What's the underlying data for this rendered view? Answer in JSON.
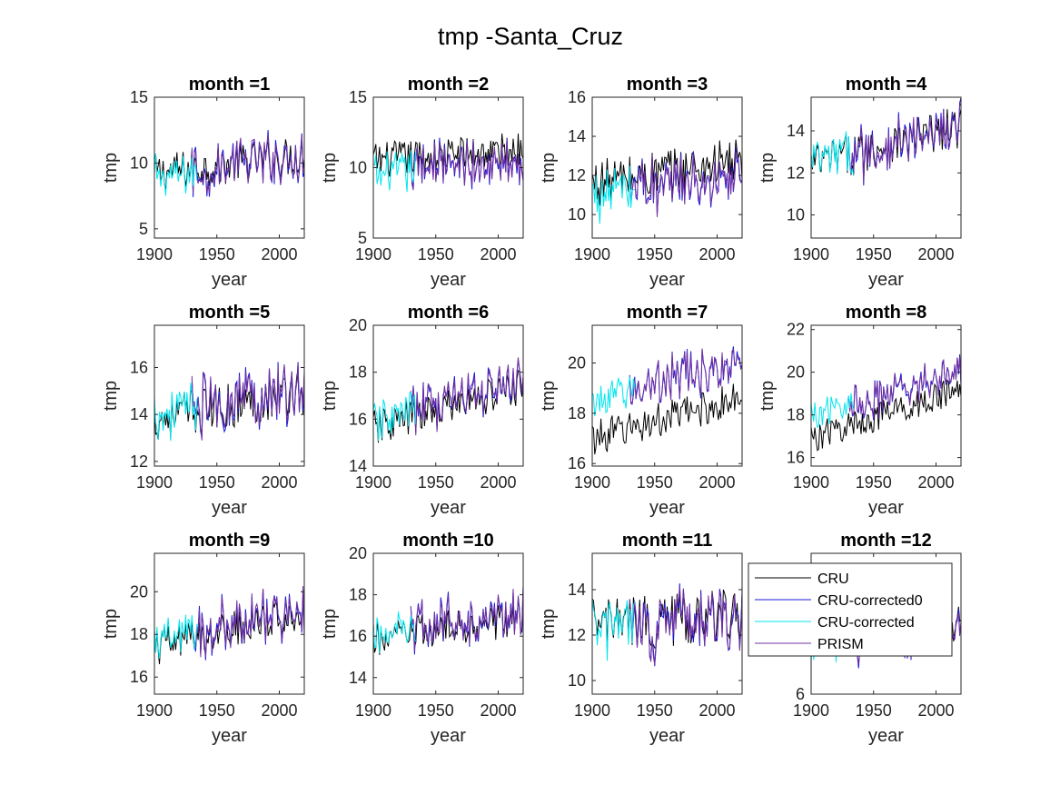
{
  "figure": {
    "title": "tmp -Santa_Cruz"
  },
  "chart_data": {
    "type": "line",
    "layout_rows": 3,
    "layout_cols": 4,
    "xlabel": "year",
    "ylabel": "tmp",
    "xlim": [
      1900,
      2020
    ],
    "xticks": [
      1900,
      1950,
      2000
    ],
    "legend": {
      "placement": "overlapping panel month =12 (upper-left)",
      "entries": [
        {
          "name": "CRU",
          "color": "#000000"
        },
        {
          "name": "CRU-corrected0",
          "color": "#1a1adb"
        },
        {
          "name": "CRU-corrected",
          "color": "#00e5ee"
        },
        {
          "name": "PRISM",
          "color": "#7030a0"
        }
      ]
    },
    "series_colors": {
      "CRU": "#000000",
      "CRU-corrected0": "#1a1adb",
      "CRU-corrected": "#00e5ee",
      "PRISM": "#7030a0"
    },
    "series_ranges": {
      "CRU-corrected": [
        1900,
        1934
      ],
      "PRISM": [
        1930,
        2020
      ],
      "CRU-corrected0": [
        1930,
        2020
      ],
      "CRU": [
        1900,
        2020
      ]
    },
    "panels": [
      {
        "title": "month =1",
        "ylim": [
          4.3,
          15
        ],
        "yticks": [
          5,
          10,
          15
        ],
        "cru_trend": [
          9.2,
          10.6
        ],
        "corr_offset": -0.3,
        "prism_offset": -0.2,
        "noise": 1.5
      },
      {
        "title": "month =2",
        "ylim": [
          5,
          15
        ],
        "yticks": [
          5,
          10,
          15
        ],
        "cru_trend": [
          10.5,
          11.3
        ],
        "corr_offset": -1.0,
        "prism_offset": -0.8,
        "noise": 1.3
      },
      {
        "title": "month =3",
        "ylim": [
          8.8,
          16
        ],
        "yticks": [
          10,
          12,
          14,
          16
        ],
        "cru_trend": [
          11.6,
          12.8
        ],
        "corr_offset": -0.6,
        "prism_offset": -0.7,
        "noise": 1.2
      },
      {
        "title": "month =4",
        "ylim": [
          8.9,
          15.6
        ],
        "yticks": [
          10,
          12,
          14
        ],
        "cru_trend": [
          12.4,
          14.2
        ],
        "corr_offset": 0.1,
        "prism_offset": 0.0,
        "noise": 1.0
      },
      {
        "title": "month =5",
        "ylim": [
          11.8,
          17.8
        ],
        "yticks": [
          12,
          14,
          16
        ],
        "cru_trend": [
          13.8,
          15.0
        ],
        "corr_offset": 0.2,
        "prism_offset": 0.2,
        "noise": 1.0
      },
      {
        "title": "month =6",
        "ylim": [
          14,
          20
        ],
        "yticks": [
          14,
          16,
          18,
          20
        ],
        "cru_trend": [
          15.6,
          17.4
        ],
        "corr_offset": 0.3,
        "prism_offset": 0.3,
        "noise": 0.8
      },
      {
        "title": "month =7",
        "ylim": [
          15.9,
          21.5
        ],
        "yticks": [
          16,
          18,
          20
        ],
        "cru_trend": [
          17.0,
          18.6
        ],
        "corr_offset": 1.5,
        "prism_offset": 1.5,
        "noise": 0.7
      },
      {
        "title": "month =8",
        "ylim": [
          15.6,
          22.2
        ],
        "yticks": [
          16,
          18,
          20,
          22
        ],
        "cru_trend": [
          16.9,
          19.2
        ],
        "corr_offset": 1.0,
        "prism_offset": 0.9,
        "noise": 0.7
      },
      {
        "title": "month =9",
        "ylim": [
          15.2,
          21.8
        ],
        "yticks": [
          16,
          18,
          20
        ],
        "cru_trend": [
          17.4,
          19.0
        ],
        "corr_offset": 0.2,
        "prism_offset": 0.3,
        "noise": 0.9
      },
      {
        "title": "month =10",
        "ylim": [
          13.2,
          20
        ],
        "yticks": [
          14,
          16,
          18,
          20
        ],
        "cru_trend": [
          15.8,
          16.9
        ],
        "corr_offset": 0.2,
        "prism_offset": 0.3,
        "noise": 0.9
      },
      {
        "title": "month =11",
        "ylim": [
          9.4,
          15.6
        ],
        "yticks": [
          10,
          12,
          14
        ],
        "cru_trend": [
          12.4,
          12.9
        ],
        "corr_offset": -0.1,
        "prism_offset": -0.1,
        "noise": 1.2
      },
      {
        "title": "month =12",
        "ylim": [
          6,
          15.2
        ],
        "yticks": [
          6
        ],
        "cru_trend": [
          9.8,
          10.6
        ],
        "corr_offset": -0.4,
        "prism_offset": -0.3,
        "noise": 1.3
      }
    ]
  }
}
